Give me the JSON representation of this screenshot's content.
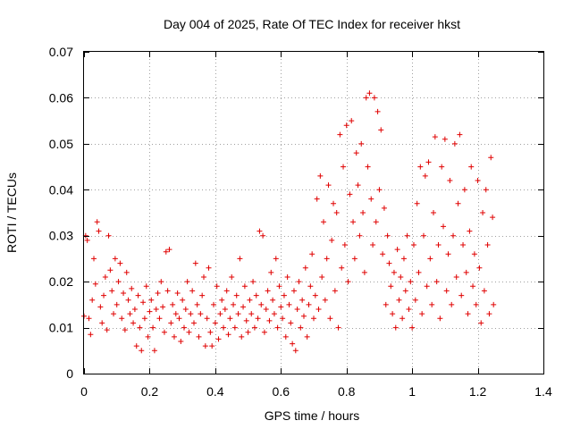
{
  "chart_data": {
    "type": "scatter",
    "title": "Day 004 of 2025, Rate Of TEC Index for receiver hkst",
    "xlabel": "GPS time / hours",
    "ylabel": "ROTI / TECUs",
    "xlim": [
      0,
      1.4
    ],
    "ylim": [
      0,
      0.07
    ],
    "x_ticks": [
      0,
      0.2,
      0.4,
      0.6,
      0.8,
      1,
      1.2,
      1.4
    ],
    "x_tick_labels": [
      "0",
      "0.2",
      "0.4",
      "0.6",
      "0.8",
      "1",
      "1.2",
      "1.4"
    ],
    "y_ticks": [
      0,
      0.01,
      0.02,
      0.03,
      0.04,
      0.05,
      0.06,
      0.07
    ],
    "y_tick_labels": [
      "0",
      "0.01",
      "0.02",
      "0.03",
      "0.04",
      "0.05",
      "0.06",
      "0.07"
    ],
    "grid": true,
    "marker": "+",
    "marker_color": "#e00000",
    "series": [
      {
        "name": "ROTI",
        "points": [
          [
            0.0,
            0.0125
          ],
          [
            0.005,
            0.03
          ],
          [
            0.01,
            0.029
          ],
          [
            0.015,
            0.012
          ],
          [
            0.02,
            0.0085
          ],
          [
            0.025,
            0.016
          ],
          [
            0.03,
            0.025
          ],
          [
            0.035,
            0.0195
          ],
          [
            0.04,
            0.033
          ],
          [
            0.045,
            0.031
          ],
          [
            0.05,
            0.0145
          ],
          [
            0.055,
            0.011
          ],
          [
            0.06,
            0.017
          ],
          [
            0.065,
            0.021
          ],
          [
            0.07,
            0.0095
          ],
          [
            0.075,
            0.03
          ],
          [
            0.08,
            0.0225
          ],
          [
            0.085,
            0.018
          ],
          [
            0.09,
            0.013
          ],
          [
            0.095,
            0.025
          ],
          [
            0.1,
            0.015
          ],
          [
            0.105,
            0.02
          ],
          [
            0.11,
            0.024
          ],
          [
            0.115,
            0.012
          ],
          [
            0.12,
            0.0175
          ],
          [
            0.125,
            0.0095
          ],
          [
            0.13,
            0.022
          ],
          [
            0.135,
            0.016
          ],
          [
            0.14,
            0.013
          ],
          [
            0.145,
            0.0185
          ],
          [
            0.15,
            0.011
          ],
          [
            0.155,
            0.014
          ],
          [
            0.16,
            0.006
          ],
          [
            0.165,
            0.017
          ],
          [
            0.17,
            0.01
          ],
          [
            0.175,
            0.005
          ],
          [
            0.18,
            0.0155
          ],
          [
            0.185,
            0.012
          ],
          [
            0.19,
            0.019
          ],
          [
            0.195,
            0.008
          ],
          [
            0.2,
            0.0135
          ],
          [
            0.205,
            0.016
          ],
          [
            0.21,
            0.01
          ],
          [
            0.215,
            0.005
          ],
          [
            0.22,
            0.014
          ],
          [
            0.225,
            0.0175
          ],
          [
            0.23,
            0.012
          ],
          [
            0.235,
            0.02
          ],
          [
            0.24,
            0.0145
          ],
          [
            0.245,
            0.009
          ],
          [
            0.25,
            0.0265
          ],
          [
            0.255,
            0.018
          ],
          [
            0.26,
            0.027
          ],
          [
            0.265,
            0.011
          ],
          [
            0.27,
            0.015
          ],
          [
            0.275,
            0.008
          ],
          [
            0.28,
            0.013
          ],
          [
            0.285,
            0.0175
          ],
          [
            0.29,
            0.012
          ],
          [
            0.295,
            0.007
          ],
          [
            0.3,
            0.016
          ],
          [
            0.305,
            0.01
          ],
          [
            0.31,
            0.014
          ],
          [
            0.315,
            0.02
          ],
          [
            0.32,
            0.009
          ],
          [
            0.325,
            0.013
          ],
          [
            0.33,
            0.018
          ],
          [
            0.335,
            0.011
          ],
          [
            0.34,
            0.024
          ],
          [
            0.345,
            0.015
          ],
          [
            0.35,
            0.008
          ],
          [
            0.355,
            0.013
          ],
          [
            0.36,
            0.017
          ],
          [
            0.365,
            0.021
          ],
          [
            0.37,
            0.006
          ],
          [
            0.375,
            0.012
          ],
          [
            0.38,
            0.023
          ],
          [
            0.385,
            0.009
          ],
          [
            0.39,
            0.006
          ],
          [
            0.395,
            0.015
          ],
          [
            0.4,
            0.011
          ],
          [
            0.405,
            0.019
          ],
          [
            0.41,
            0.0075
          ],
          [
            0.415,
            0.013
          ],
          [
            0.42,
            0.016
          ],
          [
            0.425,
            0.01
          ],
          [
            0.43,
            0.014
          ],
          [
            0.435,
            0.018
          ],
          [
            0.44,
            0.0085
          ],
          [
            0.445,
            0.012
          ],
          [
            0.45,
            0.021
          ],
          [
            0.455,
            0.015
          ],
          [
            0.46,
            0.01
          ],
          [
            0.465,
            0.017
          ],
          [
            0.47,
            0.013
          ],
          [
            0.475,
            0.025
          ],
          [
            0.48,
            0.008
          ],
          [
            0.485,
            0.0145
          ],
          [
            0.49,
            0.019
          ],
          [
            0.495,
            0.0115
          ],
          [
            0.5,
            0.009
          ],
          [
            0.505,
            0.016
          ],
          [
            0.51,
            0.013
          ],
          [
            0.515,
            0.02
          ],
          [
            0.52,
            0.01
          ],
          [
            0.525,
            0.017
          ],
          [
            0.53,
            0.012
          ],
          [
            0.535,
            0.031
          ],
          [
            0.54,
            0.015
          ],
          [
            0.545,
            0.03
          ],
          [
            0.55,
            0.009
          ],
          [
            0.555,
            0.014
          ],
          [
            0.56,
            0.018
          ],
          [
            0.565,
            0.0115
          ],
          [
            0.57,
            0.022
          ],
          [
            0.575,
            0.016
          ],
          [
            0.58,
            0.013
          ],
          [
            0.585,
            0.025
          ],
          [
            0.59,
            0.01
          ],
          [
            0.595,
            0.019
          ],
          [
            0.6,
            0.0145
          ],
          [
            0.605,
            0.012
          ],
          [
            0.61,
            0.017
          ],
          [
            0.615,
            0.008
          ],
          [
            0.62,
            0.021
          ],
          [
            0.625,
            0.015
          ],
          [
            0.63,
            0.011
          ],
          [
            0.635,
            0.0065
          ],
          [
            0.64,
            0.018
          ],
          [
            0.645,
            0.005
          ],
          [
            0.65,
            0.014
          ],
          [
            0.655,
            0.02
          ],
          [
            0.66,
            0.01
          ],
          [
            0.665,
            0.016
          ],
          [
            0.67,
            0.0125
          ],
          [
            0.675,
            0.023
          ],
          [
            0.68,
            0.008
          ],
          [
            0.685,
            0.015
          ],
          [
            0.69,
            0.019
          ],
          [
            0.695,
            0.026
          ],
          [
            0.7,
            0.012
          ],
          [
            0.705,
            0.017
          ],
          [
            0.71,
            0.038
          ],
          [
            0.715,
            0.014
          ],
          [
            0.72,
            0.043
          ],
          [
            0.725,
            0.021
          ],
          [
            0.73,
            0.033
          ],
          [
            0.735,
            0.016
          ],
          [
            0.74,
            0.025
          ],
          [
            0.745,
            0.041
          ],
          [
            0.75,
            0.012
          ],
          [
            0.755,
            0.029
          ],
          [
            0.76,
            0.037
          ],
          [
            0.765,
            0.018
          ],
          [
            0.77,
            0.035
          ],
          [
            0.775,
            0.01
          ],
          [
            0.78,
            0.052
          ],
          [
            0.785,
            0.023
          ],
          [
            0.79,
            0.045
          ],
          [
            0.795,
            0.028
          ],
          [
            0.8,
            0.054
          ],
          [
            0.805,
            0.02
          ],
          [
            0.81,
            0.039
          ],
          [
            0.815,
            0.055
          ],
          [
            0.82,
            0.033
          ],
          [
            0.825,
            0.025
          ],
          [
            0.83,
            0.048
          ],
          [
            0.835,
            0.041
          ],
          [
            0.84,
            0.03
          ],
          [
            0.845,
            0.05
          ],
          [
            0.85,
            0.035
          ],
          [
            0.855,
            0.022
          ],
          [
            0.86,
            0.06
          ],
          [
            0.865,
            0.045
          ],
          [
            0.87,
            0.061
          ],
          [
            0.875,
            0.038
          ],
          [
            0.88,
            0.028
          ],
          [
            0.885,
            0.06
          ],
          [
            0.89,
            0.033
          ],
          [
            0.895,
            0.057
          ],
          [
            0.9,
            0.04
          ],
          [
            0.905,
            0.053
          ],
          [
            0.91,
            0.026
          ],
          [
            0.915,
            0.036
          ],
          [
            0.92,
            0.015
          ],
          [
            0.925,
            0.03
          ],
          [
            0.93,
            0.024
          ],
          [
            0.935,
            0.019
          ],
          [
            0.94,
            0.013
          ],
          [
            0.945,
            0.022
          ],
          [
            0.95,
            0.01
          ],
          [
            0.955,
            0.027
          ],
          [
            0.96,
            0.016
          ],
          [
            0.965,
            0.021
          ],
          [
            0.97,
            0.012
          ],
          [
            0.975,
            0.025
          ],
          [
            0.98,
            0.018
          ],
          [
            0.985,
            0.03
          ],
          [
            0.99,
            0.014
          ],
          [
            0.995,
            0.02
          ],
          [
            1.0,
            0.01
          ],
          [
            1.005,
            0.028
          ],
          [
            1.01,
            0.016
          ],
          [
            1.015,
            0.037
          ],
          [
            1.02,
            0.022
          ],
          [
            1.025,
            0.045
          ],
          [
            1.03,
            0.013
          ],
          [
            1.035,
            0.03
          ],
          [
            1.04,
            0.043
          ],
          [
            1.045,
            0.019
          ],
          [
            1.05,
            0.046
          ],
          [
            1.055,
            0.025
          ],
          [
            1.06,
            0.015
          ],
          [
            1.065,
            0.035
          ],
          [
            1.07,
            0.0515
          ],
          [
            1.075,
            0.02
          ],
          [
            1.08,
            0.028
          ],
          [
            1.085,
            0.012
          ],
          [
            1.09,
            0.045
          ],
          [
            1.095,
            0.032
          ],
          [
            1.1,
            0.051
          ],
          [
            1.105,
            0.018
          ],
          [
            1.11,
            0.026
          ],
          [
            1.115,
            0.042
          ],
          [
            1.12,
            0.015
          ],
          [
            1.125,
            0.03
          ],
          [
            1.13,
            0.05
          ],
          [
            1.135,
            0.021
          ],
          [
            1.14,
            0.037
          ],
          [
            1.145,
            0.052
          ],
          [
            1.15,
            0.017
          ],
          [
            1.155,
            0.028
          ],
          [
            1.16,
            0.04
          ],
          [
            1.165,
            0.022
          ],
          [
            1.17,
            0.013
          ],
          [
            1.175,
            0.031
          ],
          [
            1.18,
            0.045
          ],
          [
            1.185,
            0.019
          ],
          [
            1.19,
            0.026
          ],
          [
            1.195,
            0.015
          ],
          [
            1.2,
            0.042
          ],
          [
            1.205,
            0.023
          ],
          [
            1.21,
            0.011
          ],
          [
            1.215,
            0.035
          ],
          [
            1.22,
            0.018
          ],
          [
            1.225,
            0.04
          ],
          [
            1.23,
            0.028
          ],
          [
            1.235,
            0.013
          ],
          [
            1.24,
            0.047
          ],
          [
            1.245,
            0.034
          ],
          [
            1.248,
            0.015
          ]
        ]
      }
    ]
  }
}
